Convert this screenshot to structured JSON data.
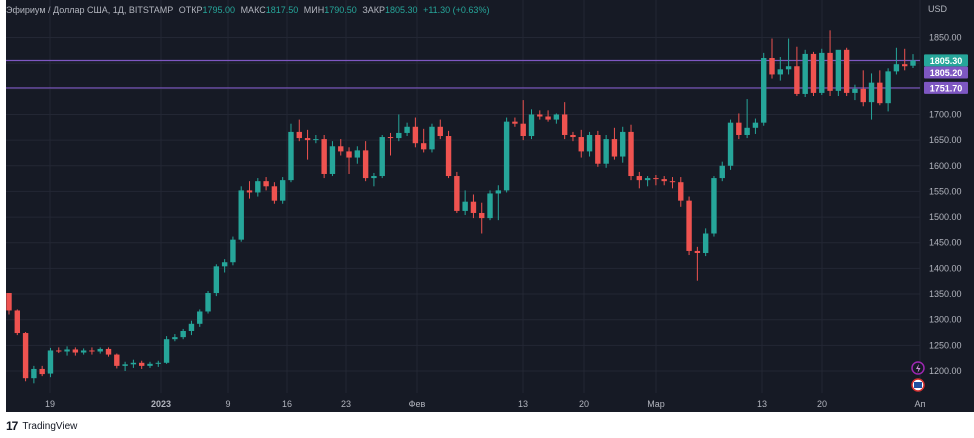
{
  "header": {
    "symbol": "Эфириум / Доллар США, 1Д, BITSTAMP",
    "o_label": "ОТКР",
    "o_value": "1795.00",
    "h_label": "МАКС",
    "h_value": "1817.50",
    "l_label": "МИН",
    "l_value": "1790.50",
    "c_label": "ЗАКР",
    "c_value": "1805.30",
    "change": "+11.30 (+0.63%)"
  },
  "currency": "USD",
  "footer": {
    "logo": "17",
    "brand": "TradingView"
  },
  "colors": {
    "background": "#161a25",
    "up": "#26a69a",
    "down": "#ef5350",
    "level_line": "#7e57c2",
    "axis_text": "#b2b5be",
    "last_price": "#26a69a"
  },
  "chart_data": {
    "type": "candlestick",
    "y_ticks": [
      "1850.00",
      "1800.00",
      "1750.00",
      "1700.00",
      "1650.00",
      "1600.00",
      "1550.00",
      "1500.00",
      "1450.00",
      "1400.00",
      "1350.00",
      "1300.00",
      "1250.00",
      "1200.00"
    ],
    "x_ticks": [
      "19",
      "2023",
      "9",
      "16",
      "23",
      "Фев",
      "13",
      "20",
      "Мар",
      "13",
      "20",
      "Ап"
    ],
    "price_labels": [
      {
        "text": "1805.30",
        "value": 1805.3,
        "kind": "last"
      },
      {
        "text": "1805.20",
        "value": 1805.2,
        "kind": "level"
      },
      {
        "text": "1751.70",
        "value": 1751.7,
        "kind": "level"
      }
    ],
    "horizontal_lines": [
      1805.2,
      1751.7
    ],
    "grid": true,
    "ohlc": [
      [
        1352,
        1352,
        1310,
        1318
      ],
      [
        1318,
        1320,
        1270,
        1274
      ],
      [
        1274,
        1276,
        1180,
        1186
      ],
      [
        1186,
        1210,
        1176,
        1204
      ],
      [
        1204,
        1210,
        1190,
        1194
      ],
      [
        1195,
        1245,
        1188,
        1240
      ],
      [
        1240,
        1246,
        1235,
        1238
      ],
      [
        1238,
        1248,
        1230,
        1242
      ],
      [
        1242,
        1246,
        1230,
        1236
      ],
      [
        1236,
        1244,
        1232,
        1240
      ],
      [
        1240,
        1246,
        1232,
        1238
      ],
      [
        1238,
        1246,
        1234,
        1243
      ],
      [
        1243,
        1246,
        1228,
        1232
      ],
      [
        1232,
        1234,
        1205,
        1210
      ],
      [
        1210,
        1218,
        1200,
        1213
      ],
      [
        1213,
        1222,
        1206,
        1216
      ],
      [
        1216,
        1220,
        1204,
        1210
      ],
      [
        1210,
        1218,
        1206,
        1214
      ],
      [
        1214,
        1220,
        1208,
        1216
      ],
      [
        1216,
        1268,
        1214,
        1262
      ],
      [
        1262,
        1272,
        1258,
        1266
      ],
      [
        1266,
        1282,
        1262,
        1278
      ],
      [
        1278,
        1298,
        1270,
        1292
      ],
      [
        1292,
        1320,
        1286,
        1316
      ],
      [
        1316,
        1356,
        1312,
        1352
      ],
      [
        1352,
        1408,
        1346,
        1404
      ],
      [
        1404,
        1418,
        1392,
        1412
      ],
      [
        1412,
        1462,
        1406,
        1456
      ],
      [
        1456,
        1560,
        1452,
        1552
      ],
      [
        1552,
        1570,
        1536,
        1548
      ],
      [
        1548,
        1576,
        1540,
        1570
      ],
      [
        1570,
        1578,
        1552,
        1560
      ],
      [
        1560,
        1568,
        1526,
        1532
      ],
      [
        1532,
        1578,
        1526,
        1572
      ],
      [
        1572,
        1682,
        1568,
        1666
      ],
      [
        1666,
        1690,
        1648,
        1654
      ],
      [
        1654,
        1670,
        1612,
        1650
      ],
      [
        1650,
        1660,
        1644,
        1652
      ],
      [
        1652,
        1660,
        1576,
        1584
      ],
      [
        1584,
        1648,
        1580,
        1638
      ],
      [
        1638,
        1652,
        1620,
        1628
      ],
      [
        1628,
        1636,
        1584,
        1616
      ],
      [
        1616,
        1638,
        1604,
        1630
      ],
      [
        1630,
        1648,
        1570,
        1576
      ],
      [
        1576,
        1586,
        1560,
        1580
      ],
      [
        1580,
        1660,
        1576,
        1656
      ],
      [
        1656,
        1664,
        1620,
        1654
      ],
      [
        1654,
        1700,
        1648,
        1664
      ],
      [
        1664,
        1684,
        1658,
        1676
      ],
      [
        1676,
        1694,
        1636,
        1644
      ],
      [
        1644,
        1672,
        1626,
        1632
      ],
      [
        1632,
        1682,
        1626,
        1676
      ],
      [
        1676,
        1690,
        1652,
        1658
      ],
      [
        1658,
        1668,
        1576,
        1580
      ],
      [
        1580,
        1588,
        1508,
        1512
      ],
      [
        1512,
        1552,
        1504,
        1530
      ],
      [
        1530,
        1544,
        1498,
        1508
      ],
      [
        1508,
        1528,
        1468,
        1498
      ],
      [
        1498,
        1552,
        1494,
        1546
      ],
      [
        1546,
        1562,
        1494,
        1552
      ],
      [
        1552,
        1694,
        1548,
        1686
      ],
      [
        1686,
        1694,
        1676,
        1682
      ],
      [
        1682,
        1728,
        1650,
        1658
      ],
      [
        1658,
        1710,
        1652,
        1700
      ],
      [
        1700,
        1708,
        1690,
        1696
      ],
      [
        1696,
        1708,
        1686,
        1690
      ],
      [
        1690,
        1702,
        1682,
        1700
      ],
      [
        1700,
        1724,
        1652,
        1660
      ],
      [
        1660,
        1666,
        1648,
        1656
      ],
      [
        1656,
        1670,
        1616,
        1628
      ],
      [
        1628,
        1666,
        1618,
        1660
      ],
      [
        1660,
        1668,
        1598,
        1604
      ],
      [
        1604,
        1660,
        1596,
        1652
      ],
      [
        1652,
        1674,
        1612,
        1618
      ],
      [
        1618,
        1676,
        1606,
        1666
      ],
      [
        1666,
        1680,
        1572,
        1580
      ],
      [
        1580,
        1588,
        1556,
        1572
      ],
      [
        1572,
        1580,
        1560,
        1576
      ],
      [
        1576,
        1582,
        1562,
        1574
      ],
      [
        1574,
        1580,
        1562,
        1570
      ],
      [
        1570,
        1578,
        1556,
        1568
      ],
      [
        1568,
        1578,
        1520,
        1532
      ],
      [
        1532,
        1540,
        1426,
        1434
      ],
      [
        1434,
        1442,
        1376,
        1430
      ],
      [
        1430,
        1478,
        1424,
        1468
      ],
      [
        1468,
        1580,
        1462,
        1576
      ],
      [
        1576,
        1608,
        1570,
        1600
      ],
      [
        1600,
        1690,
        1592,
        1684
      ],
      [
        1684,
        1702,
        1652,
        1660
      ],
      [
        1660,
        1730,
        1654,
        1674
      ],
      [
        1674,
        1692,
        1662,
        1684
      ],
      [
        1684,
        1820,
        1678,
        1810
      ],
      [
        1810,
        1848,
        1770,
        1778
      ],
      [
        1778,
        1812,
        1766,
        1788
      ],
      [
        1788,
        1848,
        1778,
        1794
      ],
      [
        1794,
        1832,
        1736,
        1740
      ],
      [
        1740,
        1826,
        1734,
        1818
      ],
      [
        1818,
        1822,
        1736,
        1742
      ],
      [
        1742,
        1828,
        1738,
        1820
      ],
      [
        1820,
        1864,
        1736,
        1746
      ],
      [
        1746,
        1824,
        1736,
        1826
      ],
      [
        1826,
        1830,
        1736,
        1742
      ],
      [
        1742,
        1758,
        1728,
        1750
      ],
      [
        1750,
        1786,
        1716,
        1724
      ],
      [
        1724,
        1780,
        1690,
        1762
      ],
      [
        1762,
        1786,
        1718,
        1722
      ],
      [
        1722,
        1790,
        1706,
        1784
      ],
      [
        1784,
        1830,
        1778,
        1798
      ],
      [
        1798,
        1828,
        1786,
        1794
      ],
      [
        1795,
        1817.5,
        1790.5,
        1805.3
      ]
    ]
  }
}
